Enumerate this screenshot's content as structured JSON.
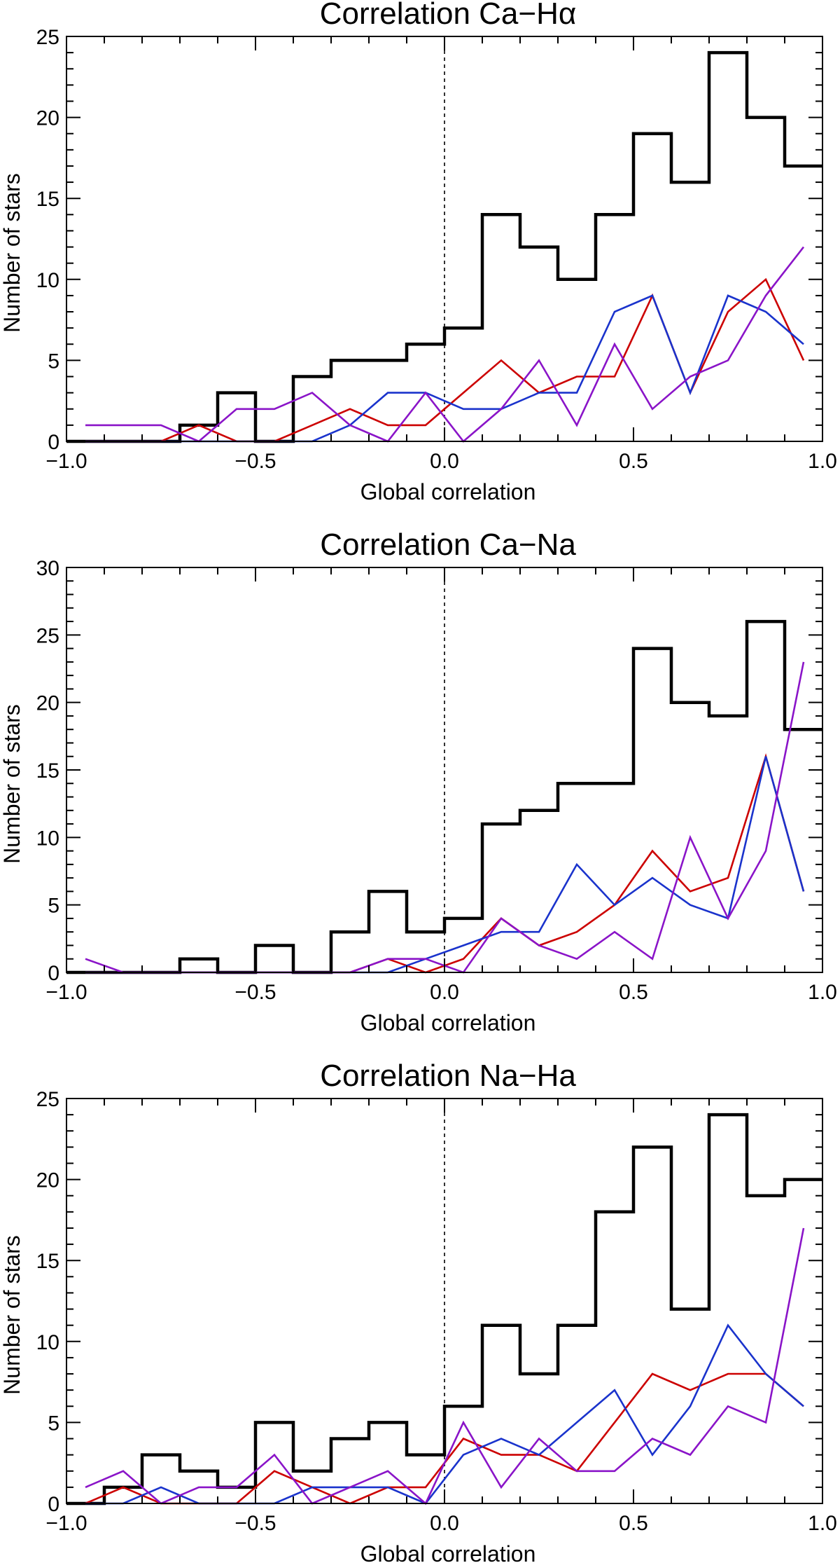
{
  "chart_data": [
    {
      "type": "line",
      "title": "Correlation Ca−Hα",
      "xlabel": "Global correlation",
      "ylabel": "Number of stars",
      "xlim": [
        -1.0,
        1.0
      ],
      "ylim": [
        0,
        25
      ],
      "xticks": [
        -1.0,
        -0.5,
        0.0,
        0.5,
        1.0
      ],
      "xtick_labels": [
        "−1.0",
        "−0.5",
        "0.0",
        "0.5",
        "1.0"
      ],
      "yticks": [
        0,
        5,
        10,
        15,
        20,
        25
      ],
      "ytick_labels": [
        "0",
        "5",
        "10",
        "15",
        "20",
        "25"
      ],
      "reference_line": {
        "x": 0.0,
        "style": "dashed"
      },
      "x": [
        -0.95,
        -0.85,
        -0.75,
        -0.65,
        -0.55,
        -0.45,
        -0.35,
        -0.25,
        -0.15,
        -0.05,
        0.05,
        0.15,
        0.25,
        0.35,
        0.45,
        0.55,
        0.65,
        0.75,
        0.85,
        0.95
      ],
      "series": [
        {
          "style": "histogram",
          "color": "#000000",
          "values": [
            0,
            0,
            0,
            1,
            3,
            0,
            4,
            5,
            5,
            6,
            7,
            14,
            12,
            10,
            14,
            19,
            16,
            24,
            20,
            17
          ]
        },
        {
          "style": "line",
          "color": "#cc0000",
          "values": [
            0,
            0,
            0,
            1,
            0,
            0,
            1,
            2,
            1,
            1,
            3,
            5,
            3,
            4,
            4,
            9,
            3,
            8,
            10,
            5
          ]
        },
        {
          "style": "line",
          "color": "#1a33cc",
          "values": [
            0,
            0,
            0,
            0,
            0,
            0,
            0,
            1,
            3,
            3,
            2,
            2,
            3,
            3,
            8,
            9,
            3,
            9,
            8,
            6
          ]
        },
        {
          "style": "line",
          "color": "#8a14c8",
          "values": [
            1,
            1,
            1,
            0,
            2,
            2,
            3,
            1,
            0,
            3,
            0,
            2,
            5,
            1,
            6,
            2,
            4,
            5,
            9,
            12
          ]
        }
      ]
    },
    {
      "type": "line",
      "title": "Correlation Ca−Na",
      "xlabel": "Global correlation",
      "ylabel": "Number of stars",
      "xlim": [
        -1.0,
        1.0
      ],
      "ylim": [
        0,
        30
      ],
      "xticks": [
        -1.0,
        -0.5,
        0.0,
        0.5,
        1.0
      ],
      "xtick_labels": [
        "−1.0",
        "−0.5",
        "0.0",
        "0.5",
        "1.0"
      ],
      "yticks": [
        0,
        5,
        10,
        15,
        20,
        25,
        30
      ],
      "ytick_labels": [
        "0",
        "5",
        "10",
        "15",
        "20",
        "25",
        "30"
      ],
      "reference_line": {
        "x": 0.0,
        "style": "dashed"
      },
      "x": [
        -0.95,
        -0.85,
        -0.75,
        -0.65,
        -0.55,
        -0.45,
        -0.35,
        -0.25,
        -0.15,
        -0.05,
        0.05,
        0.15,
        0.25,
        0.35,
        0.45,
        0.55,
        0.65,
        0.75,
        0.85,
        0.95
      ],
      "series": [
        {
          "style": "histogram",
          "color": "#000000",
          "values": [
            0,
            0,
            0,
            1,
            0,
            2,
            0,
            3,
            6,
            3,
            4,
            11,
            12,
            14,
            14,
            24,
            20,
            19,
            26,
            18
          ]
        },
        {
          "style": "line",
          "color": "#cc0000",
          "values": [
            0,
            0,
            0,
            0,
            0,
            0,
            0,
            0,
            1,
            0,
            1,
            4,
            2,
            3,
            5,
            9,
            6,
            7,
            16,
            6
          ]
        },
        {
          "style": "line",
          "color": "#1a33cc",
          "values": [
            0,
            0,
            0,
            0,
            0,
            0,
            0,
            0,
            0,
            1,
            2,
            3,
            3,
            8,
            5,
            7,
            5,
            4,
            16,
            6
          ]
        },
        {
          "style": "line",
          "color": "#8a14c8",
          "values": [
            1,
            0,
            0,
            0,
            0,
            0,
            0,
            0,
            1,
            1,
            0,
            4,
            2,
            1,
            3,
            1,
            10,
            4,
            9,
            23
          ]
        }
      ]
    },
    {
      "type": "line",
      "title": "Correlation Na−Ha",
      "xlabel": "Global correlation",
      "ylabel": "Number of stars",
      "xlim": [
        -1.0,
        1.0
      ],
      "ylim": [
        0,
        25
      ],
      "xticks": [
        -1.0,
        -0.5,
        0.0,
        0.5,
        1.0
      ],
      "xtick_labels": [
        "−1.0",
        "−0.5",
        "0.0",
        "0.5",
        "1.0"
      ],
      "yticks": [
        0,
        5,
        10,
        15,
        20,
        25
      ],
      "ytick_labels": [
        "0",
        "5",
        "10",
        "15",
        "20",
        "25"
      ],
      "reference_line": {
        "x": 0.0,
        "style": "dashed"
      },
      "x": [
        -0.95,
        -0.85,
        -0.75,
        -0.65,
        -0.55,
        -0.45,
        -0.35,
        -0.25,
        -0.15,
        -0.05,
        0.05,
        0.15,
        0.25,
        0.35,
        0.45,
        0.55,
        0.65,
        0.75,
        0.85,
        0.95
      ],
      "series": [
        {
          "style": "histogram",
          "color": "#000000",
          "values": [
            0,
            1,
            3,
            2,
            1,
            5,
            2,
            4,
            5,
            3,
            6,
            11,
            8,
            11,
            18,
            22,
            12,
            24,
            19,
            20
          ]
        },
        {
          "style": "line",
          "color": "#cc0000",
          "values": [
            0,
            1,
            0,
            0,
            0,
            2,
            1,
            0,
            1,
            1,
            4,
            3,
            3,
            2,
            5,
            8,
            7,
            8,
            8,
            6
          ]
        },
        {
          "style": "line",
          "color": "#1a33cc",
          "values": [
            0,
            0,
            1,
            0,
            0,
            0,
            1,
            1,
            1,
            0,
            3,
            4,
            3,
            5,
            7,
            3,
            6,
            11,
            8,
            6
          ]
        },
        {
          "style": "line",
          "color": "#8a14c8",
          "values": [
            1,
            2,
            0,
            1,
            1,
            3,
            0,
            1,
            2,
            0,
            5,
            1,
            4,
            2,
            2,
            4,
            3,
            6,
            5,
            17
          ]
        }
      ]
    }
  ]
}
